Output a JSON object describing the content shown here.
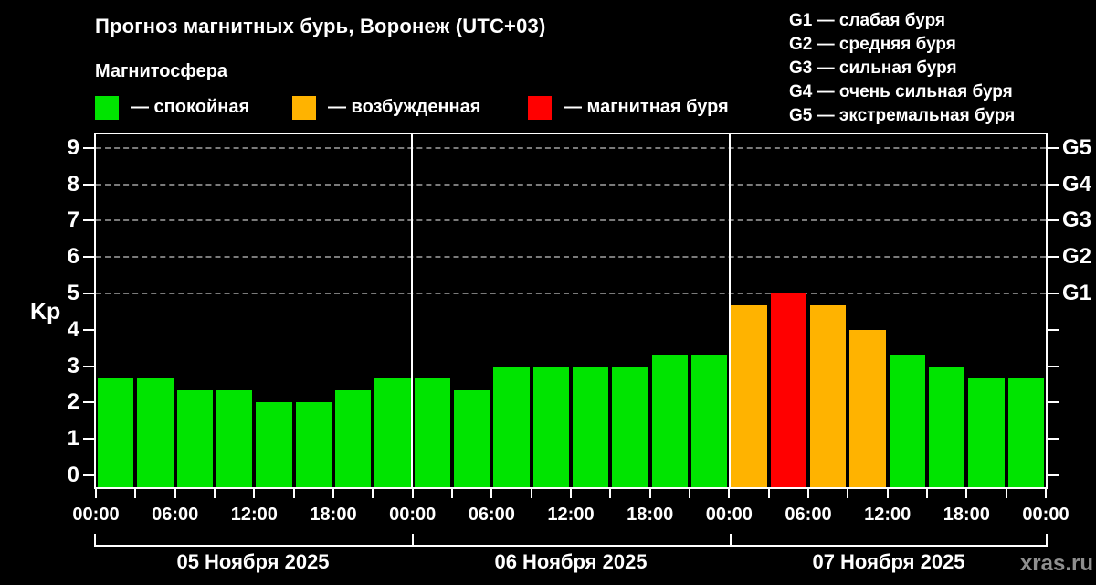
{
  "header": {
    "title": "Прогноз магнитных бурь, Воронеж (UTC+03)",
    "subtitle": "Магнитосфера"
  },
  "activity_legend": {
    "items": [
      {
        "name": "quiet",
        "label": "— спокойная",
        "color": "#00E400"
      },
      {
        "name": "excited",
        "label": "— возбужденная",
        "color": "#FFB300"
      },
      {
        "name": "storm",
        "label": "— магнитная буря",
        "color": "#FF0000"
      }
    ]
  },
  "storm_scale_legend": {
    "items": [
      "G1 — слабая буря",
      "G2 — средняя буря",
      "G3 — сильная буря",
      "G4 — очень сильная буря",
      "G5 — экстремальная буря"
    ]
  },
  "watermark": "xras.ru",
  "chart_data": {
    "type": "bar",
    "title": "Прогноз магнитных бурь, Воронеж (UTC+03)",
    "ylabel": "Kp",
    "ylim": [
      0,
      9
    ],
    "yticks": [
      0,
      1,
      2,
      3,
      4,
      5,
      6,
      7,
      8,
      9
    ],
    "gridlines_kp": [
      5,
      6,
      7,
      8,
      9
    ],
    "right_axis_labels": [
      {
        "kp": 5,
        "text": "G1"
      },
      {
        "kp": 6,
        "text": "G2"
      },
      {
        "kp": 7,
        "text": "G3"
      },
      {
        "kp": 8,
        "text": "G4"
      },
      {
        "kp": 9,
        "text": "G5"
      }
    ],
    "x_tick_labels": [
      "00:00",
      "06:00",
      "12:00",
      "18:00",
      "00:00",
      "06:00",
      "12:00",
      "18:00",
      "00:00",
      "06:00",
      "12:00",
      "18:00",
      "00:00"
    ],
    "bar_colors": {
      "green": "#00E400",
      "orange": "#FFB300",
      "red": "#FF0000"
    },
    "days": [
      {
        "date": "05 Ноября 2025",
        "values": [
          2.67,
          2.67,
          2.33,
          2.33,
          2.0,
          2.0,
          2.33,
          2.67
        ],
        "colors": [
          "green",
          "green",
          "green",
          "green",
          "green",
          "green",
          "green",
          "green"
        ]
      },
      {
        "date": "06 Ноября 2025",
        "values": [
          2.67,
          2.33,
          3.0,
          3.0,
          3.0,
          3.0,
          3.33,
          3.33
        ],
        "colors": [
          "green",
          "green",
          "green",
          "green",
          "green",
          "green",
          "green",
          "green"
        ]
      },
      {
        "date": "07 Ноября 2025",
        "values": [
          4.67,
          5.0,
          4.67,
          4.0,
          3.33,
          3.0,
          2.67,
          2.67
        ],
        "colors": [
          "orange",
          "red",
          "orange",
          "orange",
          "green",
          "green",
          "green",
          "green"
        ]
      }
    ]
  }
}
